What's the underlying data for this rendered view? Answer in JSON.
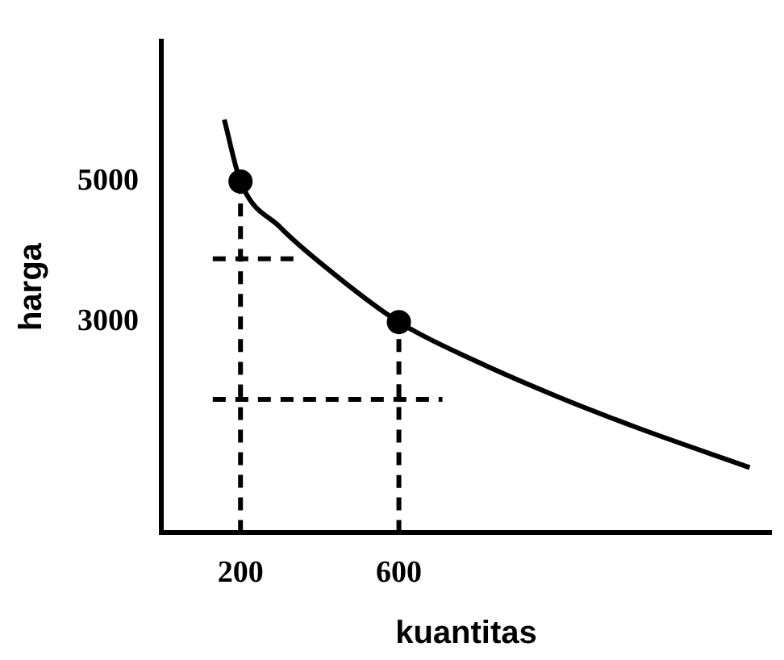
{
  "chart_data": {
    "type": "line",
    "xlabel": "kuantitas",
    "ylabel": "harga",
    "xlim": [
      0,
      1540
    ],
    "ylim": [
      0,
      7000
    ],
    "xticks": [
      200,
      600
    ],
    "yticks": [
      3000,
      5000
    ],
    "grid": false,
    "legend": false,
    "series": [
      {
        "color": "#000000",
        "line_style": "solid",
        "marker": "none",
        "x": [
          159,
          200,
          300,
          400,
          600,
          800,
          1000,
          1200,
          1486
        ],
        "values": [
          5880,
          5000,
          4350,
          3850,
          3000,
          2430,
          1940,
          1500,
          930
        ]
      },
      {
        "type": "scatter",
        "color": "#000000",
        "marker": "circle",
        "x": [
          200,
          600
        ],
        "values": [
          5000,
          3000
        ]
      },
      {
        "color": "#000000",
        "line_style": "dashed",
        "marker": "none",
        "x": [
          200,
          200
        ],
        "values": [
          0,
          5000
        ]
      },
      {
        "color": "#000000",
        "line_style": "dashed",
        "marker": "none",
        "x": [
          600,
          600
        ],
        "values": [
          0,
          3000
        ]
      },
      {
        "color": "#000000",
        "line_style": "dashed",
        "marker": "none",
        "x": [
          130,
          335
        ],
        "values": [
          3900,
          3900
        ]
      },
      {
        "color": "#000000",
        "line_style": "dashed",
        "marker": "none",
        "x": [
          130,
          710
        ],
        "values": [
          1900,
          1900
        ]
      }
    ]
  }
}
